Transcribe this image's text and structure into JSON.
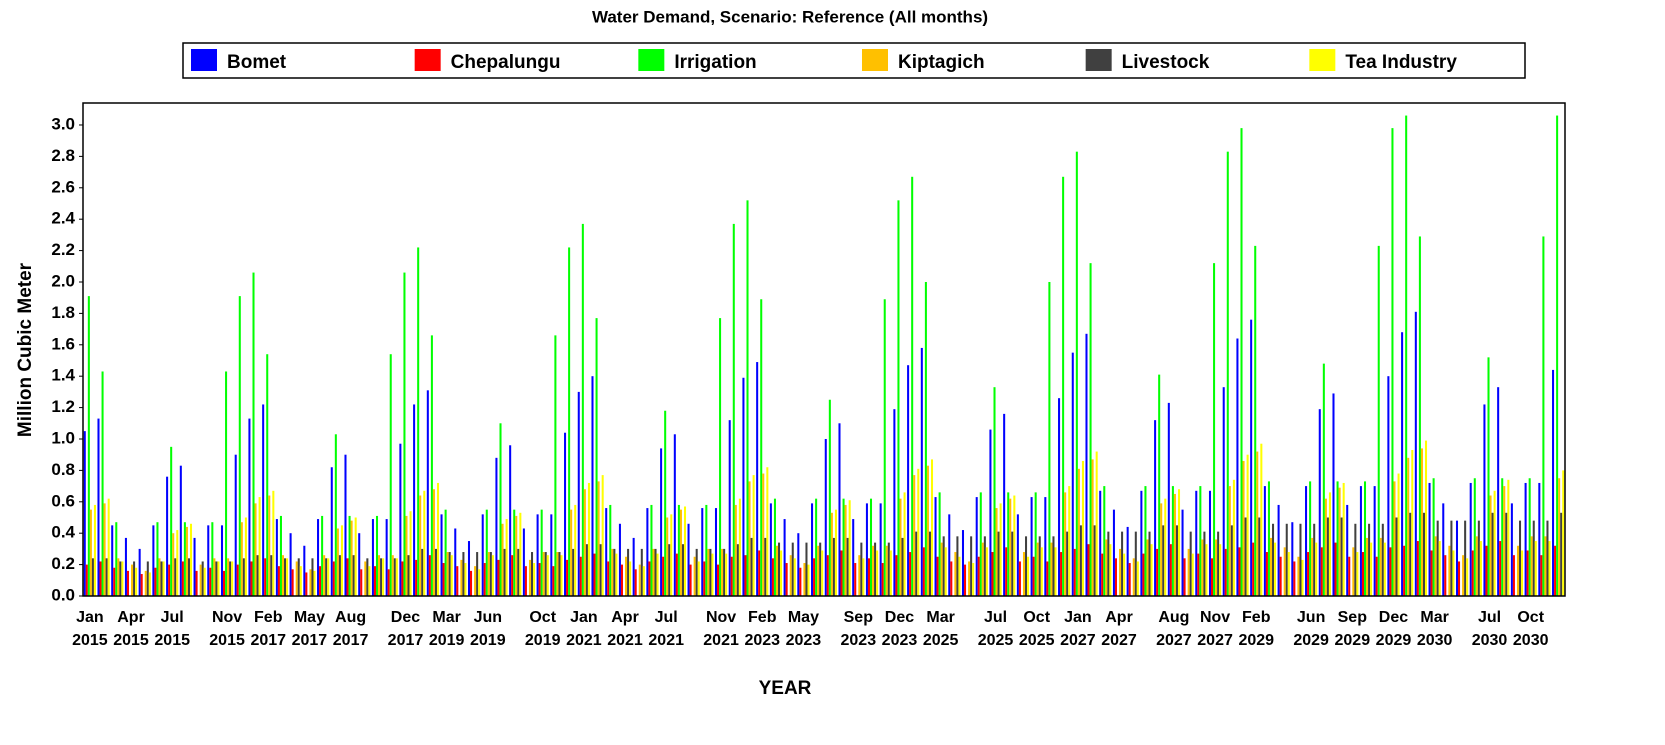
{
  "chart_data": {
    "type": "bar",
    "title": "Water Demand, Scenario: Reference (All months)",
    "y_label": "Million Cubic Meter",
    "x_label": "YEAR",
    "legend": "top",
    "grid": false,
    "ylim": [
      0,
      3.14
    ],
    "yticks": [
      {
        "value": 0,
        "label": "0.0"
      },
      0.2,
      0.4,
      0.6,
      0.8,
      {
        "value": 1,
        "label": "1.0"
      },
      1.2,
      1.4,
      1.6,
      1.8,
      {
        "value": 2,
        "label": "2.0"
      },
      2.2,
      2.4,
      2.6,
      2.8,
      {
        "value": 3,
        "label": "3.0"
      }
    ],
    "categories": [
      "Jan\n2015",
      null,
      null,
      "Apr\n2015",
      null,
      null,
      "Jul\n2015",
      null,
      null,
      null,
      "Nov\n2015",
      null,
      null,
      "Feb\n2017",
      null,
      null,
      "May\n2017",
      null,
      null,
      "Aug\n2017",
      null,
      null,
      null,
      "Dec\n2017",
      null,
      null,
      "Mar\n2019",
      null,
      null,
      "Jun\n2019",
      null,
      null,
      null,
      "Oct\n2019",
      null,
      null,
      "Jan\n2021",
      null,
      null,
      "Apr\n2021",
      null,
      null,
      "Jul\n2021",
      null,
      null,
      null,
      "Nov\n2021",
      null,
      null,
      "Feb\n2023",
      null,
      null,
      "May\n2023",
      null,
      null,
      null,
      "Sep\n2023",
      null,
      null,
      "Dec\n2023",
      null,
      null,
      "Mar\n2025",
      null,
      null,
      null,
      "Jul\n2025",
      null,
      null,
      "Oct\n2025",
      null,
      null,
      "Jan\n2027",
      null,
      null,
      "Apr\n2027",
      null,
      null,
      null,
      "Aug\n2027",
      null,
      null,
      "Nov\n2027",
      null,
      null,
      "Feb\n2029",
      null,
      null,
      null,
      "Jun\n2029",
      null,
      null,
      "Sep\n2029",
      null,
      null,
      "Dec\n2029",
      null,
      null,
      "Mar\n2030",
      null,
      null,
      null,
      "Jul\n2030",
      null,
      null,
      "Oct\n2030",
      null,
      null
    ],
    "series": [
      {
        "name": "Bomet",
        "color": "#0000ff",
        "values": [
          1.05,
          1.13,
          0.45,
          0.37,
          0.3,
          0.45,
          0.76,
          0.83,
          0.37,
          0.45,
          0.45,
          0.9,
          1.13,
          1.22,
          0.49,
          0.4,
          0.32,
          0.49,
          0.82,
          0.9,
          0.4,
          0.49,
          0.49,
          0.97,
          1.22,
          1.31,
          0.52,
          0.43,
          0.35,
          0.52,
          0.88,
          0.96,
          0.43,
          0.52,
          0.52,
          1.04,
          1.3,
          1.4,
          0.56,
          0.46,
          0.37,
          0.56,
          0.94,
          1.03,
          0.46,
          0.56,
          0.56,
          1.12,
          1.39,
          1.49,
          0.59,
          0.49,
          0.4,
          0.59,
          1.0,
          1.1,
          0.49,
          0.59,
          0.59,
          1.19,
          1.47,
          1.58,
          0.63,
          0.52,
          0.42,
          0.63,
          1.06,
          1.16,
          0.52,
          0.63,
          0.63,
          1.26,
          1.55,
          1.67,
          0.67,
          0.55,
          0.44,
          0.67,
          1.12,
          1.23,
          0.55,
          0.67,
          0.67,
          1.33,
          1.64,
          1.76,
          0.7,
          0.58,
          0.47,
          0.7,
          1.19,
          1.29,
          0.58,
          0.7,
          0.7,
          1.4,
          1.68,
          1.81,
          0.72,
          0.59,
          0.48,
          0.72,
          1.22,
          1.33,
          0.59,
          0.72,
          0.72,
          1.44
        ]
      },
      {
        "name": "Chepalungu",
        "color": "#ff0000",
        "values": [
          0.2,
          0.22,
          0.18,
          0.16,
          0.14,
          0.18,
          0.2,
          0.22,
          0.16,
          0.18,
          0.16,
          0.2,
          0.22,
          0.24,
          0.19,
          0.17,
          0.15,
          0.19,
          0.22,
          0.24,
          0.17,
          0.19,
          0.17,
          0.22,
          0.23,
          0.26,
          0.21,
          0.19,
          0.16,
          0.21,
          0.23,
          0.26,
          0.19,
          0.21,
          0.19,
          0.23,
          0.25,
          0.27,
          0.22,
          0.2,
          0.17,
          0.22,
          0.25,
          0.27,
          0.2,
          0.22,
          0.2,
          0.25,
          0.26,
          0.29,
          0.24,
          0.21,
          0.18,
          0.24,
          0.26,
          0.29,
          0.21,
          0.24,
          0.21,
          0.26,
          0.28,
          0.31,
          0.25,
          0.22,
          0.2,
          0.25,
          0.28,
          0.31,
          0.22,
          0.25,
          0.22,
          0.28,
          0.3,
          0.33,
          0.27,
          0.24,
          0.21,
          0.27,
          0.3,
          0.33,
          0.24,
          0.27,
          0.24,
          0.3,
          0.31,
          0.34,
          0.28,
          0.25,
          0.22,
          0.28,
          0.31,
          0.34,
          0.25,
          0.28,
          0.25,
          0.31,
          0.32,
          0.35,
          0.29,
          0.26,
          0.22,
          0.29,
          0.32,
          0.35,
          0.26,
          0.29,
          0.26,
          0.32
        ]
      },
      {
        "name": "Irrigation",
        "color": "#00ff00",
        "values": [
          1.91,
          1.43,
          0.47,
          0,
          0,
          0.47,
          0.95,
          0.47,
          0,
          0.47,
          1.43,
          1.91,
          2.06,
          1.54,
          0.51,
          0,
          0,
          0.51,
          1.03,
          0.51,
          0,
          0.51,
          1.54,
          2.06,
          2.22,
          1.66,
          0.55,
          0,
          0,
          0.55,
          1.1,
          0.55,
          0,
          0.55,
          1.66,
          2.22,
          2.37,
          1.77,
          0.58,
          0,
          0,
          0.58,
          1.18,
          0.58,
          0,
          0.58,
          1.77,
          2.37,
          2.52,
          1.89,
          0.62,
          0,
          0,
          0.62,
          1.25,
          0.62,
          0,
          0.62,
          1.89,
          2.52,
          2.67,
          2.0,
          0.66,
          0,
          0,
          0.66,
          1.33,
          0.66,
          0,
          0.66,
          2.0,
          2.67,
          2.83,
          2.12,
          0.7,
          0,
          0,
          0.7,
          1.41,
          0.7,
          0,
          0.7,
          2.12,
          2.83,
          2.98,
          2.23,
          0.73,
          0,
          0,
          0.73,
          1.48,
          0.73,
          0,
          0.73,
          2.23,
          2.98,
          3.06,
          2.29,
          0.75,
          0,
          0,
          0.75,
          1.52,
          0.75,
          0,
          0.75,
          2.29,
          3.06
        ]
      },
      {
        "name": "Kiptagich",
        "color": "#ffc000",
        "values": [
          0.55,
          0.59,
          0.24,
          0.2,
          0.16,
          0.24,
          0.4,
          0.44,
          0.2,
          0.24,
          0.24,
          0.47,
          0.59,
          0.64,
          0.26,
          0.22,
          0.17,
          0.26,
          0.43,
          0.48,
          0.22,
          0.26,
          0.26,
          0.51,
          0.64,
          0.68,
          0.28,
          0.23,
          0.19,
          0.28,
          0.46,
          0.51,
          0.23,
          0.28,
          0.28,
          0.55,
          0.68,
          0.73,
          0.3,
          0.25,
          0.2,
          0.3,
          0.5,
          0.55,
          0.25,
          0.3,
          0.3,
          0.58,
          0.73,
          0.78,
          0.32,
          0.26,
          0.21,
          0.32,
          0.53,
          0.58,
          0.26,
          0.32,
          0.32,
          0.62,
          0.77,
          0.83,
          0.34,
          0.28,
          0.22,
          0.34,
          0.56,
          0.62,
          0.28,
          0.34,
          0.34,
          0.66,
          0.81,
          0.87,
          0.36,
          0.3,
          0.24,
          0.36,
          0.59,
          0.65,
          0.3,
          0.36,
          0.36,
          0.7,
          0.86,
          0.92,
          0.37,
          0.31,
          0.25,
          0.37,
          0.62,
          0.69,
          0.31,
          0.37,
          0.37,
          0.73,
          0.88,
          0.94,
          0.38,
          0.32,
          0.26,
          0.38,
          0.64,
          0.7,
          0.32,
          0.38,
          0.38,
          0.75
        ]
      },
      {
        "name": "Livestock",
        "color": "#404040",
        "values": [
          0.24,
          0.24,
          0.22,
          0.22,
          0.22,
          0.22,
          0.24,
          0.24,
          0.22,
          0.22,
          0.22,
          0.24,
          0.26,
          0.26,
          0.24,
          0.24,
          0.24,
          0.24,
          0.26,
          0.26,
          0.24,
          0.24,
          0.24,
          0.26,
          0.3,
          0.3,
          0.28,
          0.28,
          0.28,
          0.28,
          0.3,
          0.3,
          0.28,
          0.28,
          0.28,
          0.3,
          0.33,
          0.33,
          0.3,
          0.3,
          0.3,
          0.3,
          0.33,
          0.33,
          0.3,
          0.3,
          0.3,
          0.33,
          0.37,
          0.37,
          0.34,
          0.34,
          0.34,
          0.34,
          0.37,
          0.37,
          0.34,
          0.34,
          0.34,
          0.37,
          0.41,
          0.41,
          0.38,
          0.38,
          0.38,
          0.38,
          0.41,
          0.41,
          0.38,
          0.38,
          0.38,
          0.41,
          0.45,
          0.45,
          0.41,
          0.41,
          0.41,
          0.41,
          0.45,
          0.45,
          0.41,
          0.41,
          0.41,
          0.45,
          0.5,
          0.5,
          0.46,
          0.46,
          0.46,
          0.46,
          0.5,
          0.5,
          0.46,
          0.46,
          0.46,
          0.5,
          0.53,
          0.53,
          0.48,
          0.48,
          0.48,
          0.48,
          0.53,
          0.53,
          0.48,
          0.48,
          0.48,
          0.53
        ]
      },
      {
        "name": "Tea Industry",
        "color": "#ffff00",
        "values": [
          0.58,
          0.62,
          0.22,
          0.18,
          0.15,
          0.22,
          0.42,
          0.46,
          0.18,
          0.22,
          0.22,
          0.5,
          0.63,
          0.67,
          0.24,
          0.19,
          0.16,
          0.24,
          0.45,
          0.5,
          0.19,
          0.24,
          0.24,
          0.54,
          0.67,
          0.72,
          0.26,
          0.21,
          0.17,
          0.26,
          0.49,
          0.53,
          0.21,
          0.26,
          0.26,
          0.58,
          0.72,
          0.77,
          0.27,
          0.22,
          0.19,
          0.27,
          0.52,
          0.57,
          0.22,
          0.27,
          0.27,
          0.62,
          0.77,
          0.82,
          0.29,
          0.24,
          0.2,
          0.29,
          0.55,
          0.61,
          0.24,
          0.29,
          0.29,
          0.66,
          0.81,
          0.87,
          0.31,
          0.25,
          0.21,
          0.31,
          0.59,
          0.64,
          0.25,
          0.31,
          0.31,
          0.7,
          0.86,
          0.92,
          0.33,
          0.27,
          0.22,
          0.33,
          0.62,
          0.68,
          0.27,
          0.33,
          0.33,
          0.74,
          0.9,
          0.97,
          0.34,
          0.28,
          0.23,
          0.34,
          0.66,
          0.72,
          0.28,
          0.34,
          0.34,
          0.78,
          0.93,
          0.99,
          0.35,
          0.29,
          0.24,
          0.35,
          0.67,
          0.74,
          0.29,
          0.35,
          0.35,
          0.8
        ]
      }
    ]
  }
}
